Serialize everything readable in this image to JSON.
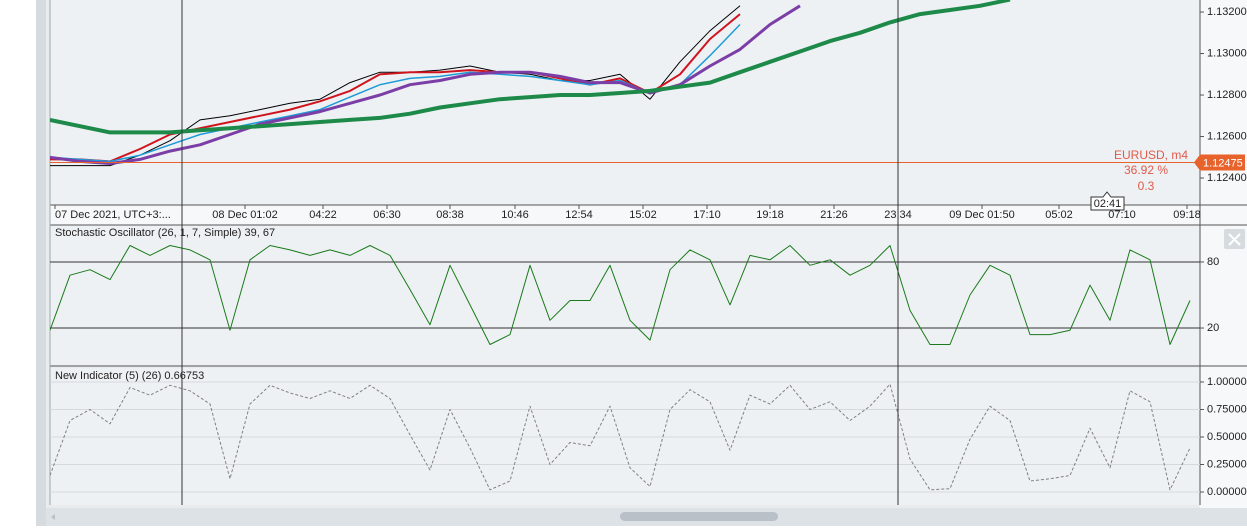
{
  "chart_data": [
    {
      "type": "line",
      "x": [
        0,
        3,
        6,
        9,
        12,
        15,
        18,
        21,
        24,
        27,
        30,
        33,
        36,
        39,
        42,
        45,
        48,
        51,
        54,
        57,
        60,
        63,
        66,
        69,
        72,
        75,
        78,
        81,
        84,
        87,
        90,
        93,
        96,
        99,
        102,
        105,
        108,
        111,
        114
      ],
      "xlim": [
        0,
        115
      ],
      "xticks": [
        {
          "value": 0.5,
          "label": "07 Dec 2021, UTC+3:..."
        },
        {
          "value": 19.5,
          "label": "08 Dec 01:02"
        },
        {
          "value": 27.3,
          "label": "04:22"
        },
        {
          "value": 33.7,
          "label": "06:30"
        },
        {
          "value": 40,
          "label": "08:38"
        },
        {
          "value": 46.5,
          "label": "10:46"
        },
        {
          "value": 52.9,
          "label": "12:54"
        },
        {
          "value": 59.3,
          "label": "15:02"
        },
        {
          "value": 65.7,
          "label": "17:10"
        },
        {
          "value": 72,
          "label": "19:18"
        },
        {
          "value": 78.4,
          "label": "21:26"
        },
        {
          "value": 84.8,
          "label": "23:34"
        },
        {
          "value": 93.2,
          "label": "09 Dec 01:50"
        },
        {
          "value": 100.9,
          "label": "05:02"
        },
        {
          "value": 107.2,
          "label": "07:10"
        },
        {
          "value": 113.7,
          "label": "09:18"
        }
      ],
      "ylim": [
        1.1227,
        1.13258
      ],
      "yticks": [
        {
          "value": 1.124,
          "label": "1.12400"
        },
        {
          "value": 1.126,
          "label": "1.12600"
        },
        {
          "value": 1.128,
          "label": "1.12800"
        },
        {
          "value": 1.13,
          "label": "1.13000"
        },
        {
          "value": 1.132,
          "label": "1.13200"
        }
      ],
      "series": [
        {
          "color": "#000000",
          "values": [
            1.1246,
            1.1246,
            1.1246,
            1.1251,
            1.1258,
            1.1268,
            1.127,
            1.1273,
            1.1276,
            1.1278,
            1.1286,
            1.1291,
            1.1291,
            1.1292,
            1.1294,
            1.1291,
            1.129,
            1.1287,
            1.1287,
            1.129,
            1.1278,
            1.1296,
            1.1311,
            1.1323,
            null,
            null,
            null,
            null,
            null,
            null,
            null,
            null,
            null,
            null,
            null,
            null,
            null,
            null,
            null
          ]
        },
        {
          "color": "#d0141e",
          "values": [
            1.1249,
            1.1249,
            1.1248,
            1.1254,
            1.1261,
            1.1264,
            1.1267,
            1.127,
            1.1273,
            1.1277,
            1.1282,
            1.129,
            1.1291,
            1.1291,
            1.1292,
            1.1291,
            1.1291,
            1.1288,
            1.1285,
            1.1288,
            1.1281,
            1.129,
            1.1307,
            1.1319,
            null,
            null,
            null,
            null,
            null,
            null,
            null,
            null,
            null,
            null,
            null,
            null,
            null,
            null,
            null
          ]
        },
        {
          "color": "#1e9bd7",
          "values": [
            1.125,
            1.1249,
            1.1248,
            1.1251,
            1.1256,
            1.1261,
            1.1264,
            1.1267,
            1.127,
            1.1273,
            1.1279,
            1.1285,
            1.1288,
            1.1289,
            1.1291,
            1.129,
            1.1289,
            1.1287,
            1.1285,
            1.1287,
            1.1281,
            1.1285,
            1.1299,
            1.1314,
            null,
            null,
            null,
            null,
            null,
            null,
            null,
            null,
            null,
            null,
            null,
            null,
            null,
            null,
            null
          ]
        },
        {
          "color": "#7b3ea6",
          "values": [
            1.125,
            1.1248,
            1.1247,
            1.1249,
            1.1253,
            1.1256,
            1.1261,
            1.1266,
            1.1269,
            1.1272,
            1.1276,
            1.128,
            1.1285,
            1.1287,
            1.129,
            1.1291,
            1.1291,
            1.1289,
            1.1286,
            1.1286,
            1.1281,
            1.1285,
            1.1294,
            1.1302,
            1.1314,
            1.1323,
            null,
            null,
            null,
            null,
            null,
            null,
            null,
            null,
            null,
            null,
            null,
            null,
            null
          ]
        },
        {
          "color": "#1e8a4a",
          "values": [
            1.1268,
            1.1265,
            1.1262,
            1.1262,
            1.1262,
            1.1263,
            1.1264,
            1.1265,
            1.1266,
            1.1267,
            1.1268,
            1.1269,
            1.1271,
            1.1274,
            1.1276,
            1.1278,
            1.1279,
            1.128,
            1.128,
            1.1281,
            1.1282,
            1.1284,
            1.1286,
            1.1291,
            1.1296,
            1.1301,
            1.1306,
            1.131,
            1.1315,
            1.1319,
            1.1321,
            1.1323,
            1.1326,
            null,
            null,
            null,
            null,
            null,
            null
          ]
        }
      ],
      "current_price": {
        "value": 1.12475,
        "label": "1.12475"
      },
      "current_price_color": "#e8622c",
      "annotations": [
        "EURUSD, m4",
        "36.92 %",
        "0.3"
      ],
      "time_marker": "02:41"
    },
    {
      "type": "line",
      "title": "Stochastic Oscillator (26, 1, 7, Simple) 39, 67",
      "x": [
        0,
        2,
        4,
        6,
        8,
        10,
        12,
        14,
        16,
        18,
        20,
        22,
        24,
        26,
        28,
        30,
        32,
        34,
        36,
        38,
        40,
        42,
        44,
        46,
        48,
        50,
        52,
        54,
        56,
        58,
        60,
        62,
        64,
        66,
        68,
        70,
        72,
        74,
        76,
        78,
        80,
        82,
        84,
        86,
        88,
        90,
        92,
        94,
        96,
        98,
        100,
        102,
        104,
        106,
        108,
        110,
        112,
        114
      ],
      "xlim": [
        0,
        115
      ],
      "ylim": [
        -13.6,
        113.6
      ],
      "yticks": [
        20,
        80
      ],
      "grid": true,
      "grid_color": "#333333",
      "series": [
        {
          "color": "#1a7a1a",
          "values": [
            18,
            68,
            73,
            64,
            95,
            86,
            95,
            91,
            82,
            18,
            82,
            95,
            91,
            86,
            91,
            86,
            95,
            86,
            55,
            23,
            77,
            41,
            5,
            14,
            77,
            27,
            45,
            45,
            77,
            27,
            9,
            73,
            91,
            82,
            41,
            86,
            82,
            95,
            77,
            82,
            68,
            77,
            95,
            36,
            5,
            5,
            50,
            77,
            68,
            14,
            14,
            18,
            59,
            27,
            91,
            82,
            5,
            45
          ]
        }
      ]
    },
    {
      "type": "line",
      "title": "New Indicator (5) (26) 0.66753",
      "x": [
        0,
        2,
        4,
        6,
        8,
        10,
        12,
        14,
        16,
        18,
        20,
        22,
        24,
        26,
        28,
        30,
        32,
        34,
        36,
        38,
        40,
        42,
        44,
        46,
        48,
        50,
        52,
        54,
        56,
        58,
        60,
        62,
        64,
        66,
        68,
        70,
        72,
        74,
        76,
        78,
        80,
        82,
        84,
        86,
        88,
        90,
        92,
        94,
        96,
        98,
        100,
        102,
        104,
        106,
        108,
        110,
        112,
        114
      ],
      "xlim": [
        0,
        115
      ],
      "ylim": [
        -0.118,
        1.127
      ],
      "yticks": [
        {
          "value": 0,
          "label": "0.00000"
        },
        {
          "value": 0.25,
          "label": "0.25000"
        },
        {
          "value": 0.5,
          "label": "0.50000"
        },
        {
          "value": 0.75,
          "label": "0.75000"
        },
        {
          "value": 1,
          "label": "1.00000"
        }
      ],
      "grid": true,
      "grid_color": "#d5d9de",
      "series": [
        {
          "color": "#808080",
          "line_style": "dashed",
          "values": [
            0.15,
            0.65,
            0.75,
            0.62,
            0.95,
            0.88,
            0.97,
            0.92,
            0.8,
            0.12,
            0.8,
            0.97,
            0.9,
            0.85,
            0.92,
            0.85,
            0.97,
            0.85,
            0.52,
            0.2,
            0.75,
            0.4,
            0.02,
            0.1,
            0.78,
            0.25,
            0.45,
            0.42,
            0.78,
            0.22,
            0.05,
            0.75,
            0.93,
            0.82,
            0.38,
            0.88,
            0.8,
            0.97,
            0.75,
            0.82,
            0.65,
            0.78,
            0.98,
            0.3,
            0.02,
            0.03,
            0.48,
            0.78,
            0.65,
            0.1,
            0.12,
            0.15,
            0.58,
            0.22,
            0.92,
            0.82,
            0.02,
            0.4
          ]
        }
      ]
    }
  ]
}
